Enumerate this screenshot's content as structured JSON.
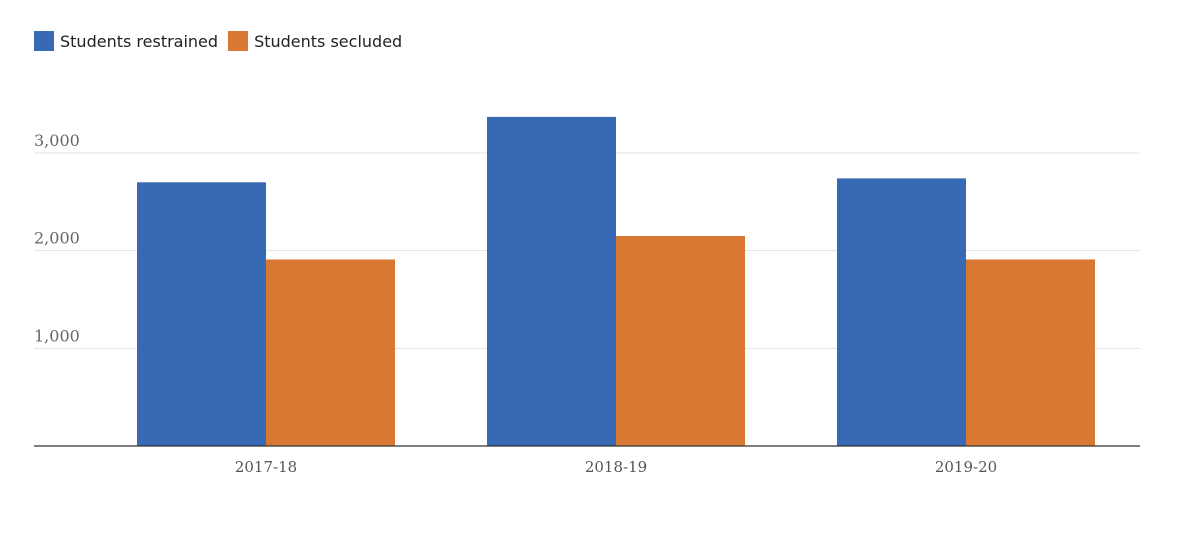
{
  "chart_data": {
    "type": "bar",
    "categories": [
      "2017-18",
      "2018-19",
      "2019-20"
    ],
    "series": [
      {
        "name": "Students restrained",
        "values": [
          2700,
          3370,
          2740
        ],
        "color": "#3869b4"
      },
      {
        "name": "Students secluded",
        "values": [
          1910,
          2150,
          1910
        ],
        "color": "#d97833"
      }
    ],
    "y_ticks": [
      {
        "value": 1000,
        "label": "1,000"
      },
      {
        "value": 2000,
        "label": "2,000"
      },
      {
        "value": 3000,
        "label": "3,000"
      }
    ],
    "ylim": [
      0,
      3000
    ],
    "title": "",
    "xlabel": "",
    "ylabel": "",
    "grid": true,
    "legend_position": "top-left"
  }
}
